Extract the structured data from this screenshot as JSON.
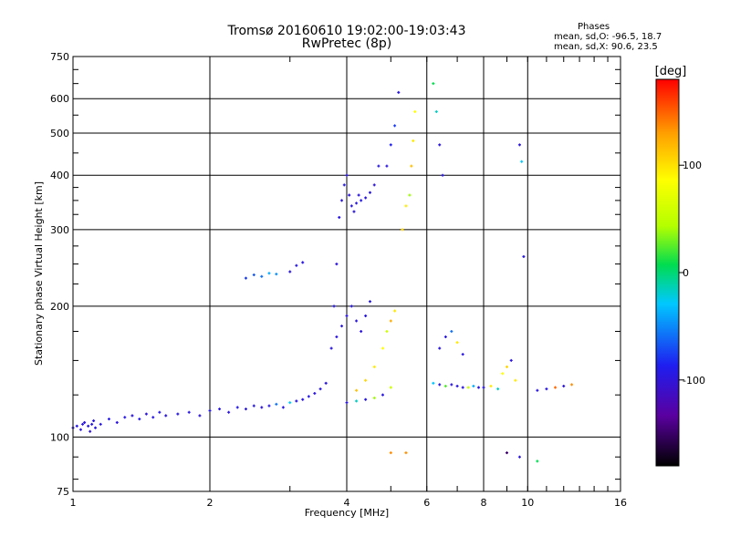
{
  "chart_data": {
    "type": "scatter",
    "title": "Tromsø 20160610 19:02:00-19:03:43",
    "subtitle": "RwPretec (8p)",
    "xlabel": "Frequency [MHz]",
    "ylabel": "Stationary phase Virtual Height [km]",
    "xscale": "log",
    "yscale": "log",
    "xlim": [
      1,
      16
    ],
    "ylim": [
      75,
      750
    ],
    "xticks": [
      1,
      2,
      4,
      6,
      8,
      10,
      16
    ],
    "yticks": [
      75,
      100,
      200,
      300,
      400,
      500,
      600,
      750
    ],
    "grid": true,
    "legend": {
      "heading": "Phases",
      "line1": "mean, sd,O: -96.5, 18.7",
      "line2": "mean, sd,X:  90.6, 23.5"
    },
    "colorbar": {
      "label": "[deg]",
      "range": [
        -180,
        180
      ],
      "ticks": [
        100,
        0,
        -100
      ],
      "colors": [
        "#000000",
        "#5a00a0",
        "#1e1ef0",
        "#00c8ff",
        "#00dc50",
        "#b4ff00",
        "#ffff00",
        "#ffa000",
        "#ff0000"
      ]
    },
    "series": [
      {
        "x": [
          1.0,
          1.02,
          1.04,
          1.05,
          1.06,
          1.08,
          1.09,
          1.1,
          1.11,
          1.12
        ],
        "y": [
          105,
          106,
          104,
          107,
          108,
          106,
          103,
          107,
          109,
          105
        ],
        "phase": [
          -100,
          -98,
          -102,
          -99,
          -101,
          -97,
          -103,
          -100,
          -98,
          -99
        ]
      },
      {
        "x": [
          1.15,
          1.2,
          1.25,
          1.3,
          1.35,
          1.4,
          1.45,
          1.5,
          1.55,
          1.6
        ],
        "y": [
          107,
          110,
          108,
          111,
          112,
          110,
          113,
          111,
          114,
          112
        ],
        "phase": [
          -100,
          -95,
          -102,
          -98,
          -100,
          -96,
          -101,
          -99,
          -97,
          -100
        ]
      },
      {
        "x": [
          1.7,
          1.8,
          1.9,
          2.0,
          2.1,
          2.2,
          2.3,
          2.4,
          2.5,
          2.6
        ],
        "y": [
          113,
          114,
          112,
          115,
          116,
          114,
          117,
          116,
          118,
          117
        ],
        "phase": [
          -98,
          -100,
          -102,
          -97,
          -99,
          -101,
          -96,
          -100,
          -98,
          -102
        ]
      },
      {
        "x": [
          2.7,
          2.8,
          2.9,
          3.0,
          3.1,
          3.2,
          3.3,
          3.4,
          3.5,
          3.6
        ],
        "y": [
          118,
          119,
          117,
          120,
          121,
          122,
          124,
          126,
          129,
          133
        ],
        "phase": [
          -100,
          -60,
          -99,
          -30,
          -98,
          -100,
          -97,
          -101,
          -99,
          -100
        ]
      },
      {
        "x": [
          2.4,
          2.5,
          2.6,
          2.7,
          2.8,
          3.0,
          3.1,
          3.2
        ],
        "y": [
          232,
          236,
          234,
          238,
          237,
          240,
          248,
          252
        ],
        "phase": [
          -80,
          -70,
          -60,
          -40,
          -50,
          -100,
          -98,
          -99
        ]
      },
      {
        "x": [
          3.7,
          3.75,
          3.8,
          3.85,
          3.9,
          3.95,
          4.0,
          4.05,
          4.1,
          4.15,
          4.2,
          4.25,
          4.3,
          4.4,
          4.5,
          4.6,
          4.7
        ],
        "y": [
          160,
          200,
          250,
          320,
          350,
          380,
          400,
          360,
          340,
          330,
          345,
          360,
          350,
          355,
          365,
          380,
          420
        ],
        "phase": [
          -100,
          -98,
          -102,
          -99,
          -101,
          -97,
          -100,
          -103,
          -98,
          -100,
          -99,
          -101,
          -97,
          -100,
          -98,
          -102,
          -99
        ]
      },
      {
        "x": [
          3.8,
          3.9,
          4.0,
          4.1,
          4.2,
          4.3,
          4.4,
          4.5
        ],
        "y": [
          170,
          180,
          190,
          200,
          185,
          175,
          190,
          205
        ],
        "phase": [
          -100,
          -99,
          -101,
          -98,
          -100,
          -102,
          -99,
          -97
        ]
      },
      {
        "x": [
          4.0,
          4.2,
          4.4,
          4.6,
          4.8,
          5.0
        ],
        "y": [
          120,
          121,
          122,
          123,
          125,
          130
        ],
        "phase": [
          -100,
          -20,
          -98,
          40,
          -99,
          60
        ]
      },
      {
        "x": [
          4.2,
          4.4,
          4.6,
          4.8,
          4.9,
          5.0,
          5.1
        ],
        "y": [
          128,
          135,
          145,
          160,
          175,
          185,
          195
        ],
        "phase": [
          120,
          110,
          100,
          90,
          60,
          130,
          100
        ]
      },
      {
        "x": [
          5.3,
          5.4,
          5.5,
          5.55,
          5.6,
          5.65
        ],
        "y": [
          300,
          340,
          360,
          420,
          480,
          560
        ],
        "phase": [
          110,
          100,
          40,
          120,
          100,
          90
        ]
      },
      {
        "x": [
          4.9,
          5.0,
          5.1,
          5.2
        ],
        "y": [
          420,
          470,
          520,
          620
        ],
        "phase": [
          -100,
          -90,
          -80,
          -99
        ]
      },
      {
        "x": [
          6.2,
          6.4,
          6.6,
          6.8,
          7.0,
          7.2,
          7.4,
          7.6,
          7.8
        ],
        "y": [
          133,
          132,
          131,
          132,
          131,
          130,
          130,
          131,
          130
        ],
        "phase": [
          -30,
          -98,
          20,
          -100,
          -99,
          -101,
          60,
          -40,
          -100
        ]
      },
      {
        "x": [
          6.4,
          6.6,
          6.8,
          7.0,
          7.2
        ],
        "y": [
          160,
          170,
          175,
          165,
          155
        ],
        "phase": [
          -100,
          -98,
          -60,
          100,
          -99
        ]
      },
      {
        "x": [
          8.0,
          8.3,
          8.6,
          8.8,
          9.0,
          9.2,
          9.4
        ],
        "y": [
          130,
          131,
          129,
          140,
          145,
          150,
          135
        ],
        "phase": [
          -100,
          100,
          -20,
          90,
          110,
          -101,
          100
        ]
      },
      {
        "x": [
          10.5,
          11.0,
          11.5,
          12.0,
          12.5
        ],
        "y": [
          128,
          129,
          130,
          131,
          132
        ],
        "phase": [
          -100,
          -99,
          150,
          -101,
          140
        ]
      },
      {
        "x": [
          6.2,
          6.3,
          6.4,
          6.5,
          9.6,
          9.7,
          9.8
        ],
        "y": [
          650,
          560,
          470,
          400,
          470,
          430,
          260
        ],
        "phase": [
          0,
          -20,
          -100,
          -99,
          -100,
          -30,
          -98
        ]
      },
      {
        "x": [
          5.0,
          5.4,
          9.0,
          9.6,
          10.5
        ],
        "y": [
          92,
          92,
          92,
          90,
          88
        ],
        "phase": [
          140,
          140,
          -150,
          -100,
          0
        ]
      }
    ]
  }
}
